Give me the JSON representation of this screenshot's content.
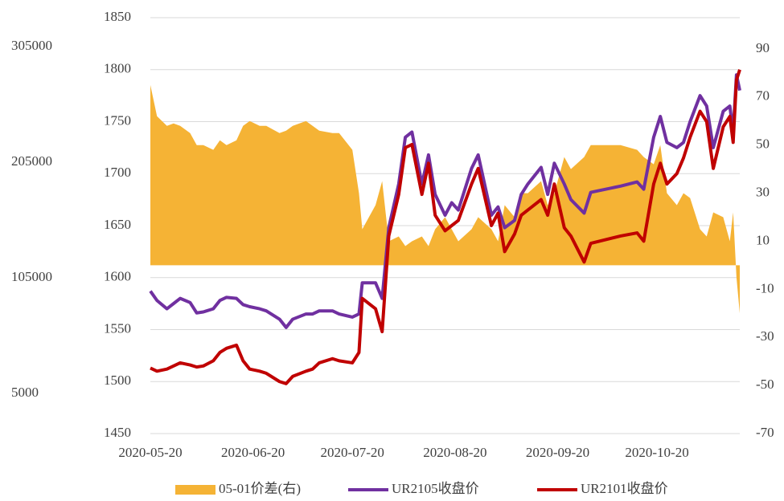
{
  "chart_data": {
    "type": "line",
    "x": [
      "2020-05-20",
      "2020-05-22",
      "2020-05-25",
      "2020-05-27",
      "2020-05-29",
      "2020-06-01",
      "2020-06-03",
      "2020-06-05",
      "2020-06-08",
      "2020-06-10",
      "2020-06-12",
      "2020-06-15",
      "2020-06-17",
      "2020-06-19",
      "2020-06-22",
      "2020-06-24",
      "2020-06-28",
      "2020-06-30",
      "2020-07-02",
      "2020-07-06",
      "2020-07-08",
      "2020-07-10",
      "2020-07-14",
      "2020-07-16",
      "2020-07-20",
      "2020-07-22",
      "2020-07-23",
      "2020-07-27",
      "2020-07-29",
      "2020-07-31",
      "2020-08-03",
      "2020-08-05",
      "2020-08-07",
      "2020-08-10",
      "2020-08-12",
      "2020-08-14",
      "2020-08-17",
      "2020-08-19",
      "2020-08-21",
      "2020-08-25",
      "2020-08-27",
      "2020-08-31",
      "2020-09-02",
      "2020-09-04",
      "2020-09-07",
      "2020-09-09",
      "2020-09-11",
      "2020-09-15",
      "2020-09-17",
      "2020-09-19",
      "2020-09-22",
      "2020-09-24",
      "2020-09-28",
      "2020-09-30",
      "2020-10-09",
      "2020-10-14",
      "2020-10-16",
      "2020-10-19",
      "2020-10-21",
      "2020-10-23",
      "2020-10-26",
      "2020-10-28",
      "2020-10-30",
      "2020-11-02",
      "2020-11-04",
      "2020-11-06",
      "2020-11-09",
      "2020-11-11",
      "2020-11-12",
      "2020-11-13",
      "2020-11-14"
    ],
    "series": [
      {
        "name": "05-01价差(右)",
        "color": "#F5B335",
        "type": "area",
        "axis": "y2",
        "values": [
          75,
          62,
          58,
          59,
          58,
          55,
          50,
          50,
          48,
          52,
          50,
          52,
          58,
          60,
          58,
          58,
          55,
          56,
          58,
          60,
          58,
          56,
          55,
          55,
          48,
          30,
          15,
          25,
          35,
          10,
          12,
          8,
          10,
          12,
          8,
          15,
          20,
          15,
          10,
          15,
          20,
          15,
          10,
          25,
          20,
          30,
          30,
          35,
          25,
          30,
          45,
          40,
          45,
          50,
          50,
          48,
          45,
          42,
          50,
          30,
          25,
          30,
          28,
          15,
          12,
          22,
          20,
          10,
          22,
          -5,
          -20
        ]
      },
      {
        "name": "UR2105收盘价",
        "color": "#7030A0",
        "type": "line",
        "values": [
          1587,
          1578,
          1570,
          1575,
          1580,
          1576,
          1566,
          1567,
          1570,
          1578,
          1581,
          1580,
          1574,
          1572,
          1570,
          1568,
          1560,
          1552,
          1560,
          1565,
          1565,
          1568,
          1568,
          1565,
          1562,
          1565,
          1595,
          1595,
          1580,
          1648,
          1690,
          1735,
          1740,
          1690,
          1718,
          1680,
          1660,
          1672,
          1665,
          1705,
          1718,
          1660,
          1668,
          1648,
          1655,
          1680,
          1690,
          1706,
          1680,
          1710,
          1690,
          1675,
          1662,
          1682,
          1688,
          1692,
          1685,
          1735,
          1755,
          1730,
          1725,
          1730,
          1750,
          1775,
          1765,
          1725,
          1760,
          1765,
          1740,
          1795,
          1780
        ]
      },
      {
        "name": "UR2101收盘价",
        "color": "#C00000",
        "type": "line",
        "values": [
          1513,
          1510,
          1512,
          1515,
          1518,
          1516,
          1514,
          1515,
          1520,
          1528,
          1532,
          1535,
          1520,
          1512,
          1510,
          1508,
          1500,
          1498,
          1505,
          1510,
          1512,
          1518,
          1522,
          1520,
          1518,
          1528,
          1580,
          1570,
          1548,
          1640,
          1680,
          1725,
          1728,
          1680,
          1710,
          1660,
          1645,
          1650,
          1655,
          1690,
          1705,
          1650,
          1662,
          1625,
          1642,
          1660,
          1665,
          1675,
          1660,
          1690,
          1648,
          1640,
          1615,
          1633,
          1640,
          1643,
          1635,
          1690,
          1710,
          1690,
          1700,
          1715,
          1735,
          1760,
          1750,
          1705,
          1745,
          1755,
          1730,
          1790,
          1800
        ]
      }
    ],
    "xlim": [
      "2020-05-20",
      "2020-11-14"
    ],
    "xticks": [
      "2020-05-20",
      "2020-06-20",
      "2020-07-20",
      "2020-08-20",
      "2020-09-20",
      "2020-10-20"
    ],
    "ylim": [
      1450,
      1850
    ],
    "yticks": [
      1450,
      1500,
      1550,
      1600,
      1650,
      1700,
      1750,
      1800,
      1850
    ],
    "y2lim": [
      -70,
      103
    ],
    "y2ticks": [
      -70,
      -50,
      -30,
      -10,
      10,
      30,
      50,
      70,
      90
    ],
    "y3lim": [
      -29700,
      330000
    ],
    "y3ticks": [
      5000,
      105000,
      205000,
      305000
    ],
    "grid": true,
    "legend": "bottom"
  }
}
